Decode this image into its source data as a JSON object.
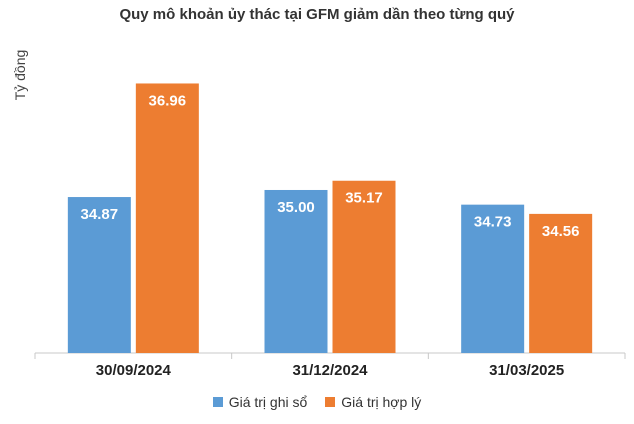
{
  "chart_data": {
    "type": "bar",
    "title": "Quy mô khoản ủy thác tại GFM giảm dần theo từng quý",
    "ylabel": "Tỷ đồng",
    "xlabel": "",
    "categories": [
      "30/09/2024",
      "31/12/2024",
      "31/03/2025"
    ],
    "series": [
      {
        "name": "Giá trị ghi sổ",
        "values": [
          34.87,
          35.0,
          34.73
        ],
        "color": "#5b9bd5"
      },
      {
        "name": "Giá trị hợp lý",
        "values": [
          36.96,
          35.17,
          34.56
        ],
        "color": "#ed7d31"
      }
    ],
    "ylim": [
      32.0,
      37.3
    ],
    "grid": false,
    "legend_position": "bottom",
    "value_labels": [
      "34.87",
      "35.00",
      "34.73",
      "36.96",
      "35.17",
      "34.56"
    ]
  }
}
